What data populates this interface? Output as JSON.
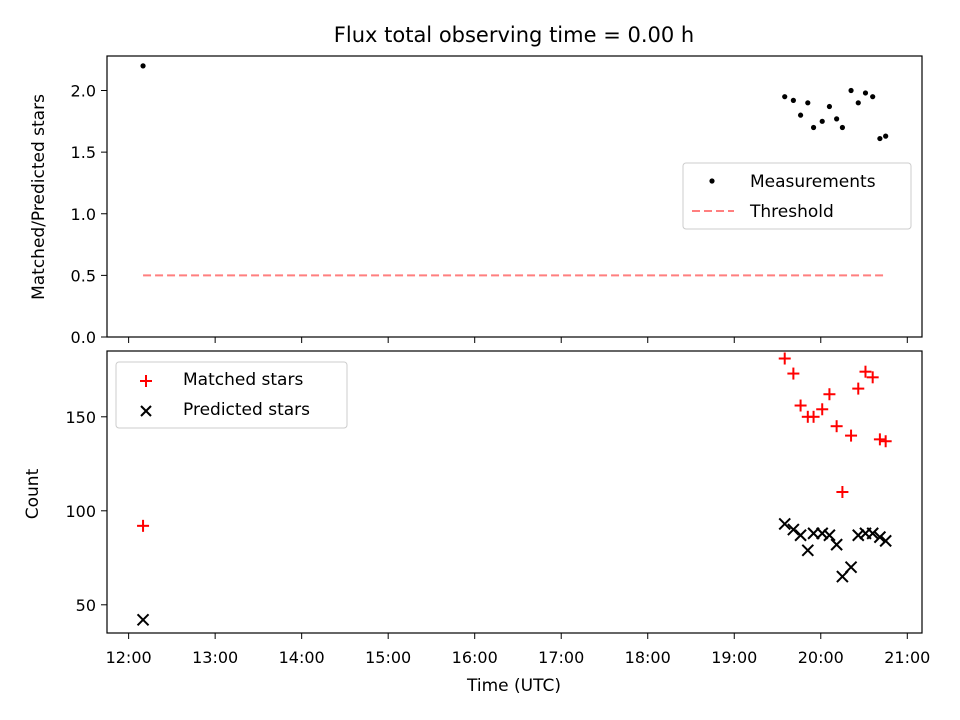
{
  "chart_data": [
    {
      "type": "scatter",
      "title": "Flux total observing time = 0.00 h",
      "ylabel": "Matched/Predicted stars",
      "xlabel": "",
      "xlim_hours": [
        11.75,
        21.17
      ],
      "ylim": [
        0,
        2.28
      ],
      "yticks": [
        "0.0",
        "0.5",
        "1.0",
        "1.5",
        "2.0"
      ],
      "legend_position": "center-right",
      "series": [
        {
          "name": "Measurements",
          "marker": "dot",
          "color": "#000000",
          "x": [
            "12:10",
            "19:35",
            "19:41",
            "19:46",
            "19:51",
            "19:55",
            "20:01",
            "20:06",
            "20:11",
            "20:15",
            "20:21",
            "20:26",
            "20:31",
            "20:36",
            "20:41",
            "20:45"
          ],
          "y": [
            2.2,
            1.95,
            1.92,
            1.8,
            1.9,
            1.7,
            1.75,
            1.87,
            1.77,
            1.7,
            2.0,
            1.9,
            1.98,
            1.95,
            1.61,
            1.63
          ]
        },
        {
          "name": "Threshold",
          "style": "dashed-line",
          "color": "#ff7f7f",
          "x": [
            "12:10",
            "20:45"
          ],
          "y": [
            0.5,
            0.5
          ]
        }
      ]
    },
    {
      "type": "scatter",
      "title": "",
      "ylabel": "Count",
      "xlabel": "Time (UTC)",
      "xlim_hours": [
        11.75,
        21.17
      ],
      "ylim": [
        35,
        185
      ],
      "yticks": [
        "50",
        "100",
        "150"
      ],
      "xticks": [
        "12:00",
        "13:00",
        "14:00",
        "15:00",
        "16:00",
        "17:00",
        "18:00",
        "19:00",
        "20:00",
        "21:00"
      ],
      "legend_position": "top-left",
      "series": [
        {
          "name": "Matched stars",
          "marker": "plus",
          "color": "#ff0000",
          "x": [
            "12:10",
            "19:35",
            "19:41",
            "19:46",
            "19:51",
            "19:55",
            "20:01",
            "20:06",
            "20:11",
            "20:15",
            "20:21",
            "20:26",
            "20:31",
            "20:36",
            "20:41",
            "20:45"
          ],
          "y": [
            92,
            181,
            173,
            156,
            150,
            150,
            154,
            162,
            145,
            110,
            140,
            165,
            174,
            171,
            138,
            137
          ]
        },
        {
          "name": "Predicted stars",
          "marker": "x",
          "color": "#000000",
          "x": [
            "12:10",
            "19:35",
            "19:41",
            "19:46",
            "19:51",
            "19:55",
            "20:01",
            "20:06",
            "20:11",
            "20:15",
            "20:21",
            "20:26",
            "20:31",
            "20:36",
            "20:41",
            "20:45"
          ],
          "y": [
            42,
            93,
            90,
            87,
            79,
            88,
            88,
            87,
            82,
            65,
            70,
            87,
            88,
            88,
            86,
            84
          ]
        }
      ]
    }
  ]
}
